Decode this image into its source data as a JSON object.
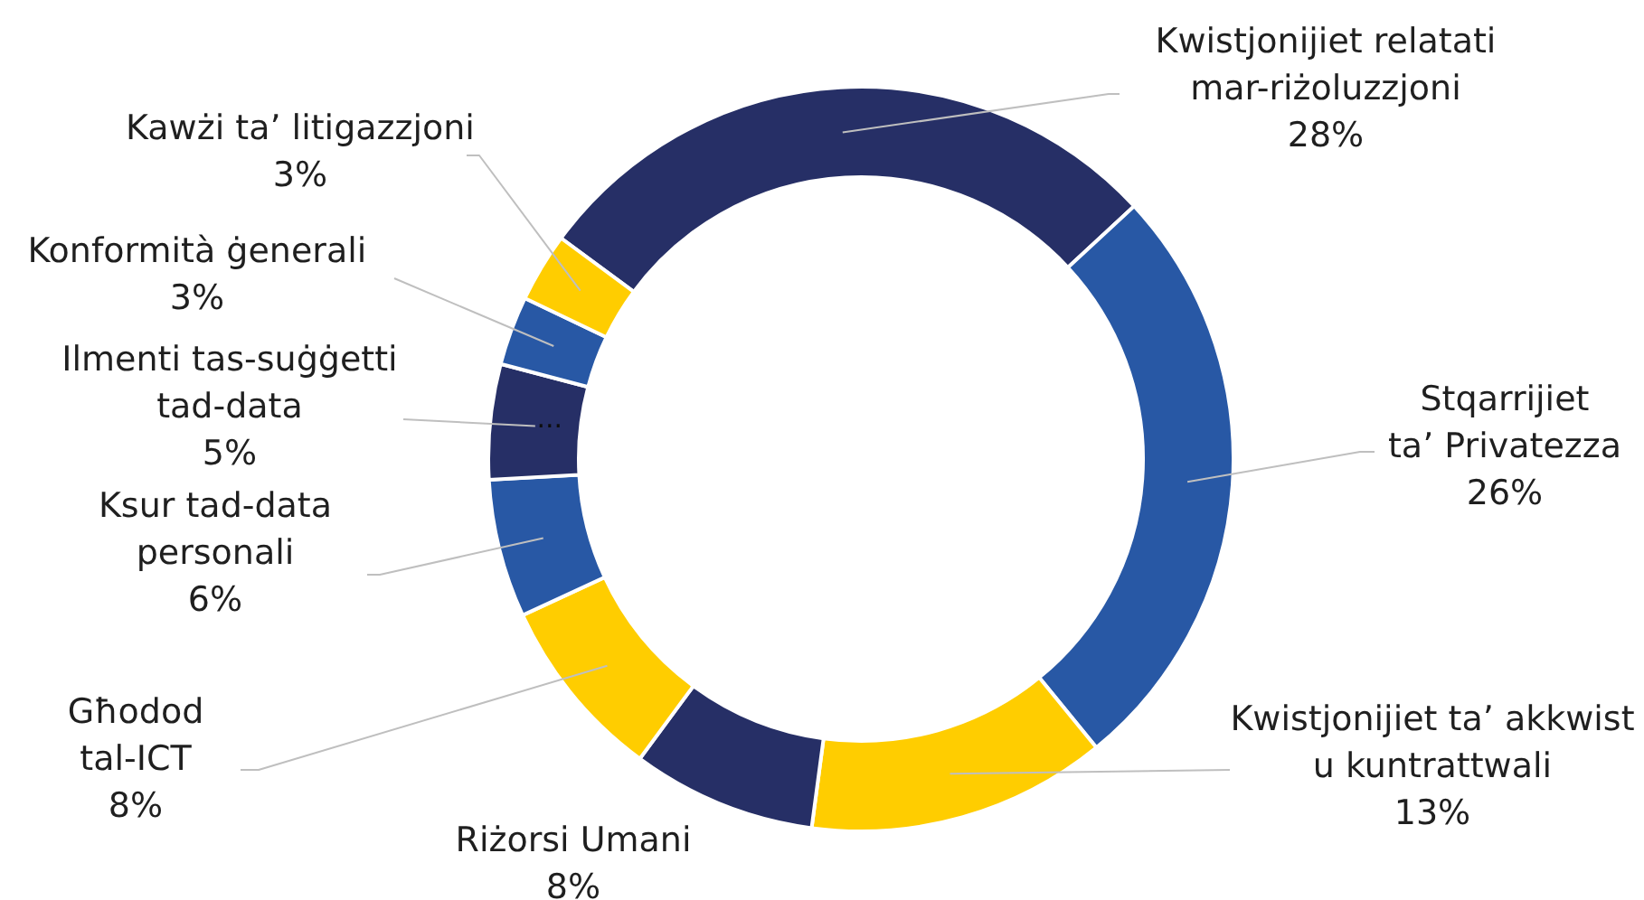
{
  "chart_data": {
    "type": "donut",
    "categories": [
      "Kwistjonijiet relatati mar-riżoluzzjoni",
      "Stqarrijiet ta’ Privatezza",
      "Kwistjonijiet ta’ akkwist u kuntrattwali",
      "Riżorsi Umani",
      "Għodod tal-ICT",
      "Ksur tad-data personali",
      "Ilmenti tas-suġġetti tad-data",
      "Konformità ġenerali",
      "Kawżi ta’ litigazzjoni"
    ],
    "values": [
      28,
      26,
      13,
      8,
      8,
      6,
      5,
      3,
      3
    ],
    "colors": [
      "#262f66",
      "#2858a5",
      "#ffcd00",
      "#262f66",
      "#ffcd00",
      "#2858a5",
      "#262f66",
      "#2858a5",
      "#ffcd00"
    ],
    "value_labels": [
      "28%",
      "26%",
      "13%",
      "8%",
      "8%",
      "6%",
      "5%",
      "3%",
      "3%"
    ],
    "annotations": [
      {
        "text": "...",
        "x": "Ilmenti tas-suġġetti tad-data"
      }
    ]
  }
}
